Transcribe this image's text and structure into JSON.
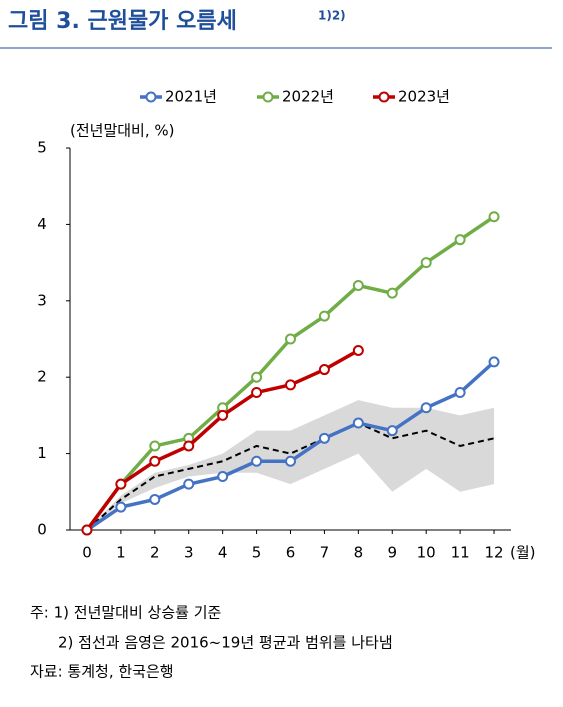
{
  "chart_data": {
    "type": "line",
    "title": "그림 3. 근원물가 오름세",
    "title_superscript": "1)2)",
    "y_label": "(전년말대비, %)",
    "x_label": "(월)",
    "x": [
      0,
      1,
      2,
      3,
      4,
      5,
      6,
      7,
      8,
      9,
      10,
      11,
      12
    ],
    "xlim": [
      -0.5,
      12.5
    ],
    "xticks": [
      0,
      1,
      2,
      3,
      4,
      5,
      6,
      7,
      8,
      9,
      10,
      11,
      12
    ],
    "ylim": [
      0,
      5
    ],
    "yticks": [
      0,
      1,
      2,
      3,
      4,
      5
    ],
    "legend": "top",
    "series": [
      {
        "name": "2021년",
        "color": "#4472c4",
        "values": [
          0,
          0.3,
          0.4,
          0.6,
          0.7,
          0.9,
          0.9,
          1.2,
          1.4,
          1.3,
          1.6,
          1.8,
          2.2
        ]
      },
      {
        "name": "2022년",
        "color": "#70ad47",
        "values": [
          0,
          0.6,
          1.1,
          1.2,
          1.6,
          2.0,
          2.5,
          2.8,
          3.2,
          3.1,
          3.5,
          3.8,
          4.1
        ]
      },
      {
        "name": "2023년",
        "color": "#c00000",
        "values": [
          0,
          0.6,
          0.9,
          1.1,
          1.5,
          1.8,
          1.9,
          2.1,
          2.35,
          null,
          null,
          null,
          null
        ]
      }
    ],
    "average": {
      "color": "#000000",
      "values": [
        0,
        0.4,
        0.7,
        0.8,
        0.9,
        1.1,
        1.0,
        1.2,
        1.4,
        1.2,
        1.3,
        1.1,
        1.2
      ]
    },
    "range": {
      "color": "#d9d9d9",
      "upper": [
        0,
        0.45,
        0.75,
        0.85,
        1.0,
        1.3,
        1.3,
        1.5,
        1.7,
        1.6,
        1.6,
        1.5,
        1.6
      ],
      "lower": [
        0,
        0.35,
        0.55,
        0.7,
        0.75,
        0.75,
        0.6,
        0.8,
        1.0,
        0.5,
        0.8,
        0.5,
        0.6
      ]
    },
    "notes": [
      "주: 1) 전년말대비 상승률 기준",
      "2) 점선과 음영은 2016~19년 평균과 범위를 나타냄",
      "자료: 통계청, 한국은행"
    ]
  }
}
